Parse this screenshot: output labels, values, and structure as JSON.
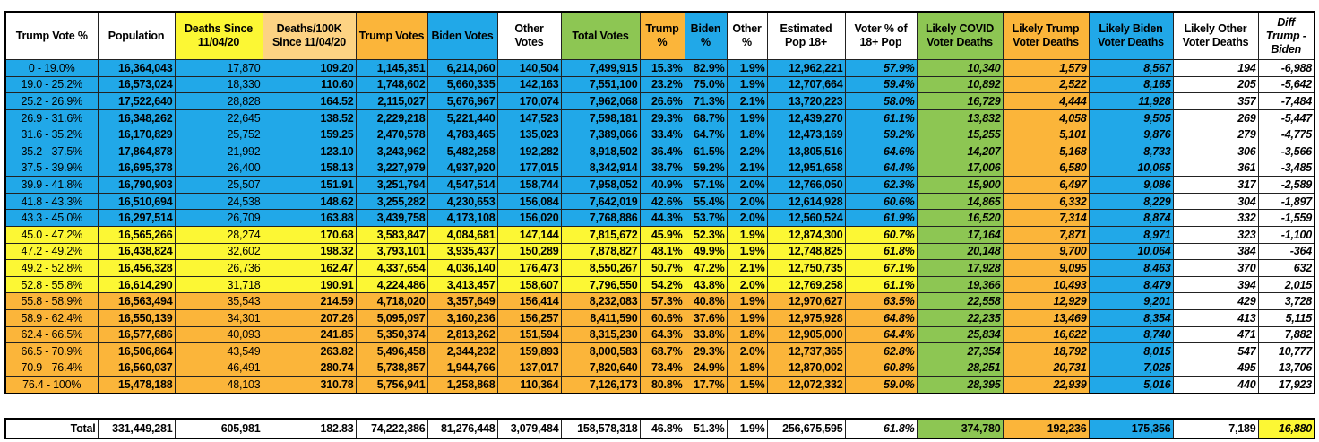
{
  "colors": {
    "blue": "#21a8e8",
    "yellow": "#fcf734",
    "orange": "#fbb53a",
    "green": "#8dc653",
    "light_orange": "#fdd383",
    "white": "#ffffff"
  },
  "headers": [
    {
      "label": "Trump Vote %",
      "color": "white"
    },
    {
      "label": "Population",
      "color": "white"
    },
    {
      "label": "Deaths Since 11/04/20",
      "color": "yellow"
    },
    {
      "label": "Deaths/100K Since 11/04/20",
      "color": "light_orange"
    },
    {
      "label": "Trump Votes",
      "color": "orange"
    },
    {
      "label": "Biden Votes",
      "color": "blue"
    },
    {
      "label": "Other Votes",
      "color": "white"
    },
    {
      "label": "Total Votes",
      "color": "green"
    },
    {
      "label": "Trump %",
      "color": "orange"
    },
    {
      "label": "Biden %",
      "color": "blue"
    },
    {
      "label": "Other %",
      "color": "white"
    },
    {
      "label": "Estimated Pop 18+",
      "color": "white"
    },
    {
      "label": "Voter % of 18+ Pop",
      "color": "white"
    },
    {
      "label": "Likely COVID Voter Deaths",
      "color": "green"
    },
    {
      "label": "Likely Trump Voter Deaths",
      "color": "orange"
    },
    {
      "label": "Likely Biden Voter Deaths",
      "color": "blue"
    },
    {
      "label": "Likely Other Voter Deaths",
      "color": "white"
    },
    {
      "label": "Diff Trump - Biden",
      "color": "white"
    }
  ],
  "rows": [
    {
      "group": "blue",
      "cells": [
        "0 - 19.0%",
        "16,364,043",
        "17,870",
        "109.20",
        "1,145,351",
        "6,214,060",
        "140,504",
        "7,499,915",
        "15.3%",
        "82.9%",
        "1.9%",
        "12,962,221",
        "57.9%",
        "10,340",
        "1,579",
        "8,567",
        "194",
        "-6,988"
      ]
    },
    {
      "group": "blue",
      "cells": [
        "19.0 - 25.2%",
        "16,573,024",
        "18,330",
        "110.60",
        "1,748,602",
        "5,660,335",
        "142,163",
        "7,551,100",
        "23.2%",
        "75.0%",
        "1.9%",
        "12,707,664",
        "59.4%",
        "10,892",
        "2,522",
        "8,165",
        "205",
        "-5,642"
      ]
    },
    {
      "group": "blue",
      "cells": [
        "25.2 - 26.9%",
        "17,522,640",
        "28,828",
        "164.52",
        "2,115,027",
        "5,676,967",
        "170,074",
        "7,962,068",
        "26.6%",
        "71.3%",
        "2.1%",
        "13,720,223",
        "58.0%",
        "16,729",
        "4,444",
        "11,928",
        "357",
        "-7,484"
      ]
    },
    {
      "group": "blue",
      "cells": [
        "26.9 - 31.6%",
        "16,348,262",
        "22,645",
        "138.52",
        "2,229,218",
        "5,221,440",
        "147,523",
        "7,598,181",
        "29.3%",
        "68.7%",
        "1.9%",
        "12,439,270",
        "61.1%",
        "13,832",
        "4,058",
        "9,505",
        "269",
        "-5,447"
      ]
    },
    {
      "group": "blue",
      "cells": [
        "31.6 - 35.2%",
        "16,170,829",
        "25,752",
        "159.25",
        "2,470,578",
        "4,783,465",
        "135,023",
        "7,389,066",
        "33.4%",
        "64.7%",
        "1.8%",
        "12,473,169",
        "59.2%",
        "15,255",
        "5,101",
        "9,876",
        "279",
        "-4,775"
      ]
    },
    {
      "group": "blue",
      "cells": [
        "35.2 - 37.5%",
        "17,864,878",
        "21,992",
        "123.10",
        "3,243,962",
        "5,482,258",
        "192,282",
        "8,918,502",
        "36.4%",
        "61.5%",
        "2.2%",
        "13,805,516",
        "64.6%",
        "14,207",
        "5,168",
        "8,733",
        "306",
        "-3,566"
      ]
    },
    {
      "group": "blue",
      "cells": [
        "37.5 - 39.9%",
        "16,695,378",
        "26,400",
        "158.13",
        "3,227,979",
        "4,937,920",
        "177,015",
        "8,342,914",
        "38.7%",
        "59.2%",
        "2.1%",
        "12,951,658",
        "64.4%",
        "17,006",
        "6,580",
        "10,065",
        "361",
        "-3,485"
      ]
    },
    {
      "group": "blue",
      "cells": [
        "39.9 - 41.8%",
        "16,790,903",
        "25,507",
        "151.91",
        "3,251,794",
        "4,547,514",
        "158,744",
        "7,958,052",
        "40.9%",
        "57.1%",
        "2.0%",
        "12,766,050",
        "62.3%",
        "15,900",
        "6,497",
        "9,086",
        "317",
        "-2,589"
      ]
    },
    {
      "group": "blue",
      "cells": [
        "41.8 - 43.3%",
        "16,510,694",
        "24,538",
        "148.62",
        "3,255,282",
        "4,230,653",
        "156,084",
        "7,642,019",
        "42.6%",
        "55.4%",
        "2.0%",
        "12,614,928",
        "60.6%",
        "14,865",
        "6,332",
        "8,229",
        "304",
        "-1,897"
      ]
    },
    {
      "group": "blue",
      "cells": [
        "43.3 - 45.0%",
        "16,297,514",
        "26,709",
        "163.88",
        "3,439,758",
        "4,173,108",
        "156,020",
        "7,768,886",
        "44.3%",
        "53.7%",
        "2.0%",
        "12,560,524",
        "61.9%",
        "16,520",
        "7,314",
        "8,874",
        "332",
        "-1,559"
      ]
    },
    {
      "group": "yellow",
      "cells": [
        "45.0 - 47.2%",
        "16,565,266",
        "28,274",
        "170.68",
        "3,583,847",
        "4,084,681",
        "147,144",
        "7,815,672",
        "45.9%",
        "52.3%",
        "1.9%",
        "12,874,300",
        "60.7%",
        "17,164",
        "7,871",
        "8,971",
        "323",
        "-1,100"
      ]
    },
    {
      "group": "yellow",
      "cells": [
        "47.2 - 49.2%",
        "16,438,824",
        "32,602",
        "198.32",
        "3,793,101",
        "3,935,437",
        "150,289",
        "7,878,827",
        "48.1%",
        "49.9%",
        "1.9%",
        "12,748,825",
        "61.8%",
        "20,148",
        "9,700",
        "10,064",
        "384",
        "-364"
      ]
    },
    {
      "group": "yellow",
      "cells": [
        "49.2 - 52.8%",
        "16,456,328",
        "26,736",
        "162.47",
        "4,337,654",
        "4,036,140",
        "176,473",
        "8,550,267",
        "50.7%",
        "47.2%",
        "2.1%",
        "12,750,735",
        "67.1%",
        "17,928",
        "9,095",
        "8,463",
        "370",
        "632"
      ]
    },
    {
      "group": "yellow",
      "cells": [
        "52.8 - 55.8%",
        "16,614,290",
        "31,718",
        "190.91",
        "4,224,486",
        "3,413,457",
        "158,607",
        "7,796,550",
        "54.2%",
        "43.8%",
        "2.0%",
        "12,769,258",
        "61.1%",
        "19,366",
        "10,493",
        "8,479",
        "394",
        "2,015"
      ]
    },
    {
      "group": "orange",
      "cells": [
        "55.8 - 58.9%",
        "16,563,494",
        "35,543",
        "214.59",
        "4,718,020",
        "3,357,649",
        "156,414",
        "8,232,083",
        "57.3%",
        "40.8%",
        "1.9%",
        "12,970,627",
        "63.5%",
        "22,558",
        "12,929",
        "9,201",
        "429",
        "3,728"
      ]
    },
    {
      "group": "orange",
      "cells": [
        "58.9 - 62.4%",
        "16,550,139",
        "34,301",
        "207.26",
        "5,095,097",
        "3,160,236",
        "156,257",
        "8,411,590",
        "60.6%",
        "37.6%",
        "1.9%",
        "12,975,928",
        "64.8%",
        "22,235",
        "13,469",
        "8,354",
        "413",
        "5,115"
      ]
    },
    {
      "group": "orange",
      "cells": [
        "62.4 - 66.5%",
        "16,577,686",
        "40,093",
        "241.85",
        "5,350,374",
        "2,813,262",
        "151,594",
        "8,315,230",
        "64.3%",
        "33.8%",
        "1.8%",
        "12,905,000",
        "64.4%",
        "25,834",
        "16,622",
        "8,740",
        "471",
        "7,882"
      ]
    },
    {
      "group": "orange",
      "cells": [
        "66.5 - 70.9%",
        "16,506,864",
        "43,549",
        "263.82",
        "5,496,458",
        "2,344,232",
        "159,893",
        "8,000,583",
        "68.7%",
        "29.3%",
        "2.0%",
        "12,737,365",
        "62.8%",
        "27,354",
        "18,792",
        "8,015",
        "547",
        "10,777"
      ]
    },
    {
      "group": "orange",
      "cells": [
        "70.9 - 76.4%",
        "16,560,037",
        "46,491",
        "280.74",
        "5,738,857",
        "1,944,766",
        "137,017",
        "7,820,640",
        "73.4%",
        "24.9%",
        "1.8%",
        "12,870,002",
        "60.8%",
        "28,251",
        "20,731",
        "7,025",
        "495",
        "13,706"
      ]
    },
    {
      "group": "orange",
      "cells": [
        "76.4 - 100%",
        "15,478,188",
        "48,103",
        "310.78",
        "5,756,941",
        "1,258,868",
        "110,364",
        "7,126,173",
        "80.8%",
        "17.7%",
        "1.5%",
        "12,072,332",
        "59.0%",
        "28,395",
        "22,939",
        "5,016",
        "440",
        "17,923"
      ]
    }
  ],
  "total": [
    "Total",
    "331,449,281",
    "605,981",
    "182.83",
    "74,222,386",
    "81,276,448",
    "3,079,484",
    "158,578,318",
    "46.8%",
    "51.3%",
    "1.9%",
    "256,675,595",
    "61.8%",
    "374,780",
    "192,236",
    "175,356",
    "7,189",
    "16,880"
  ]
}
